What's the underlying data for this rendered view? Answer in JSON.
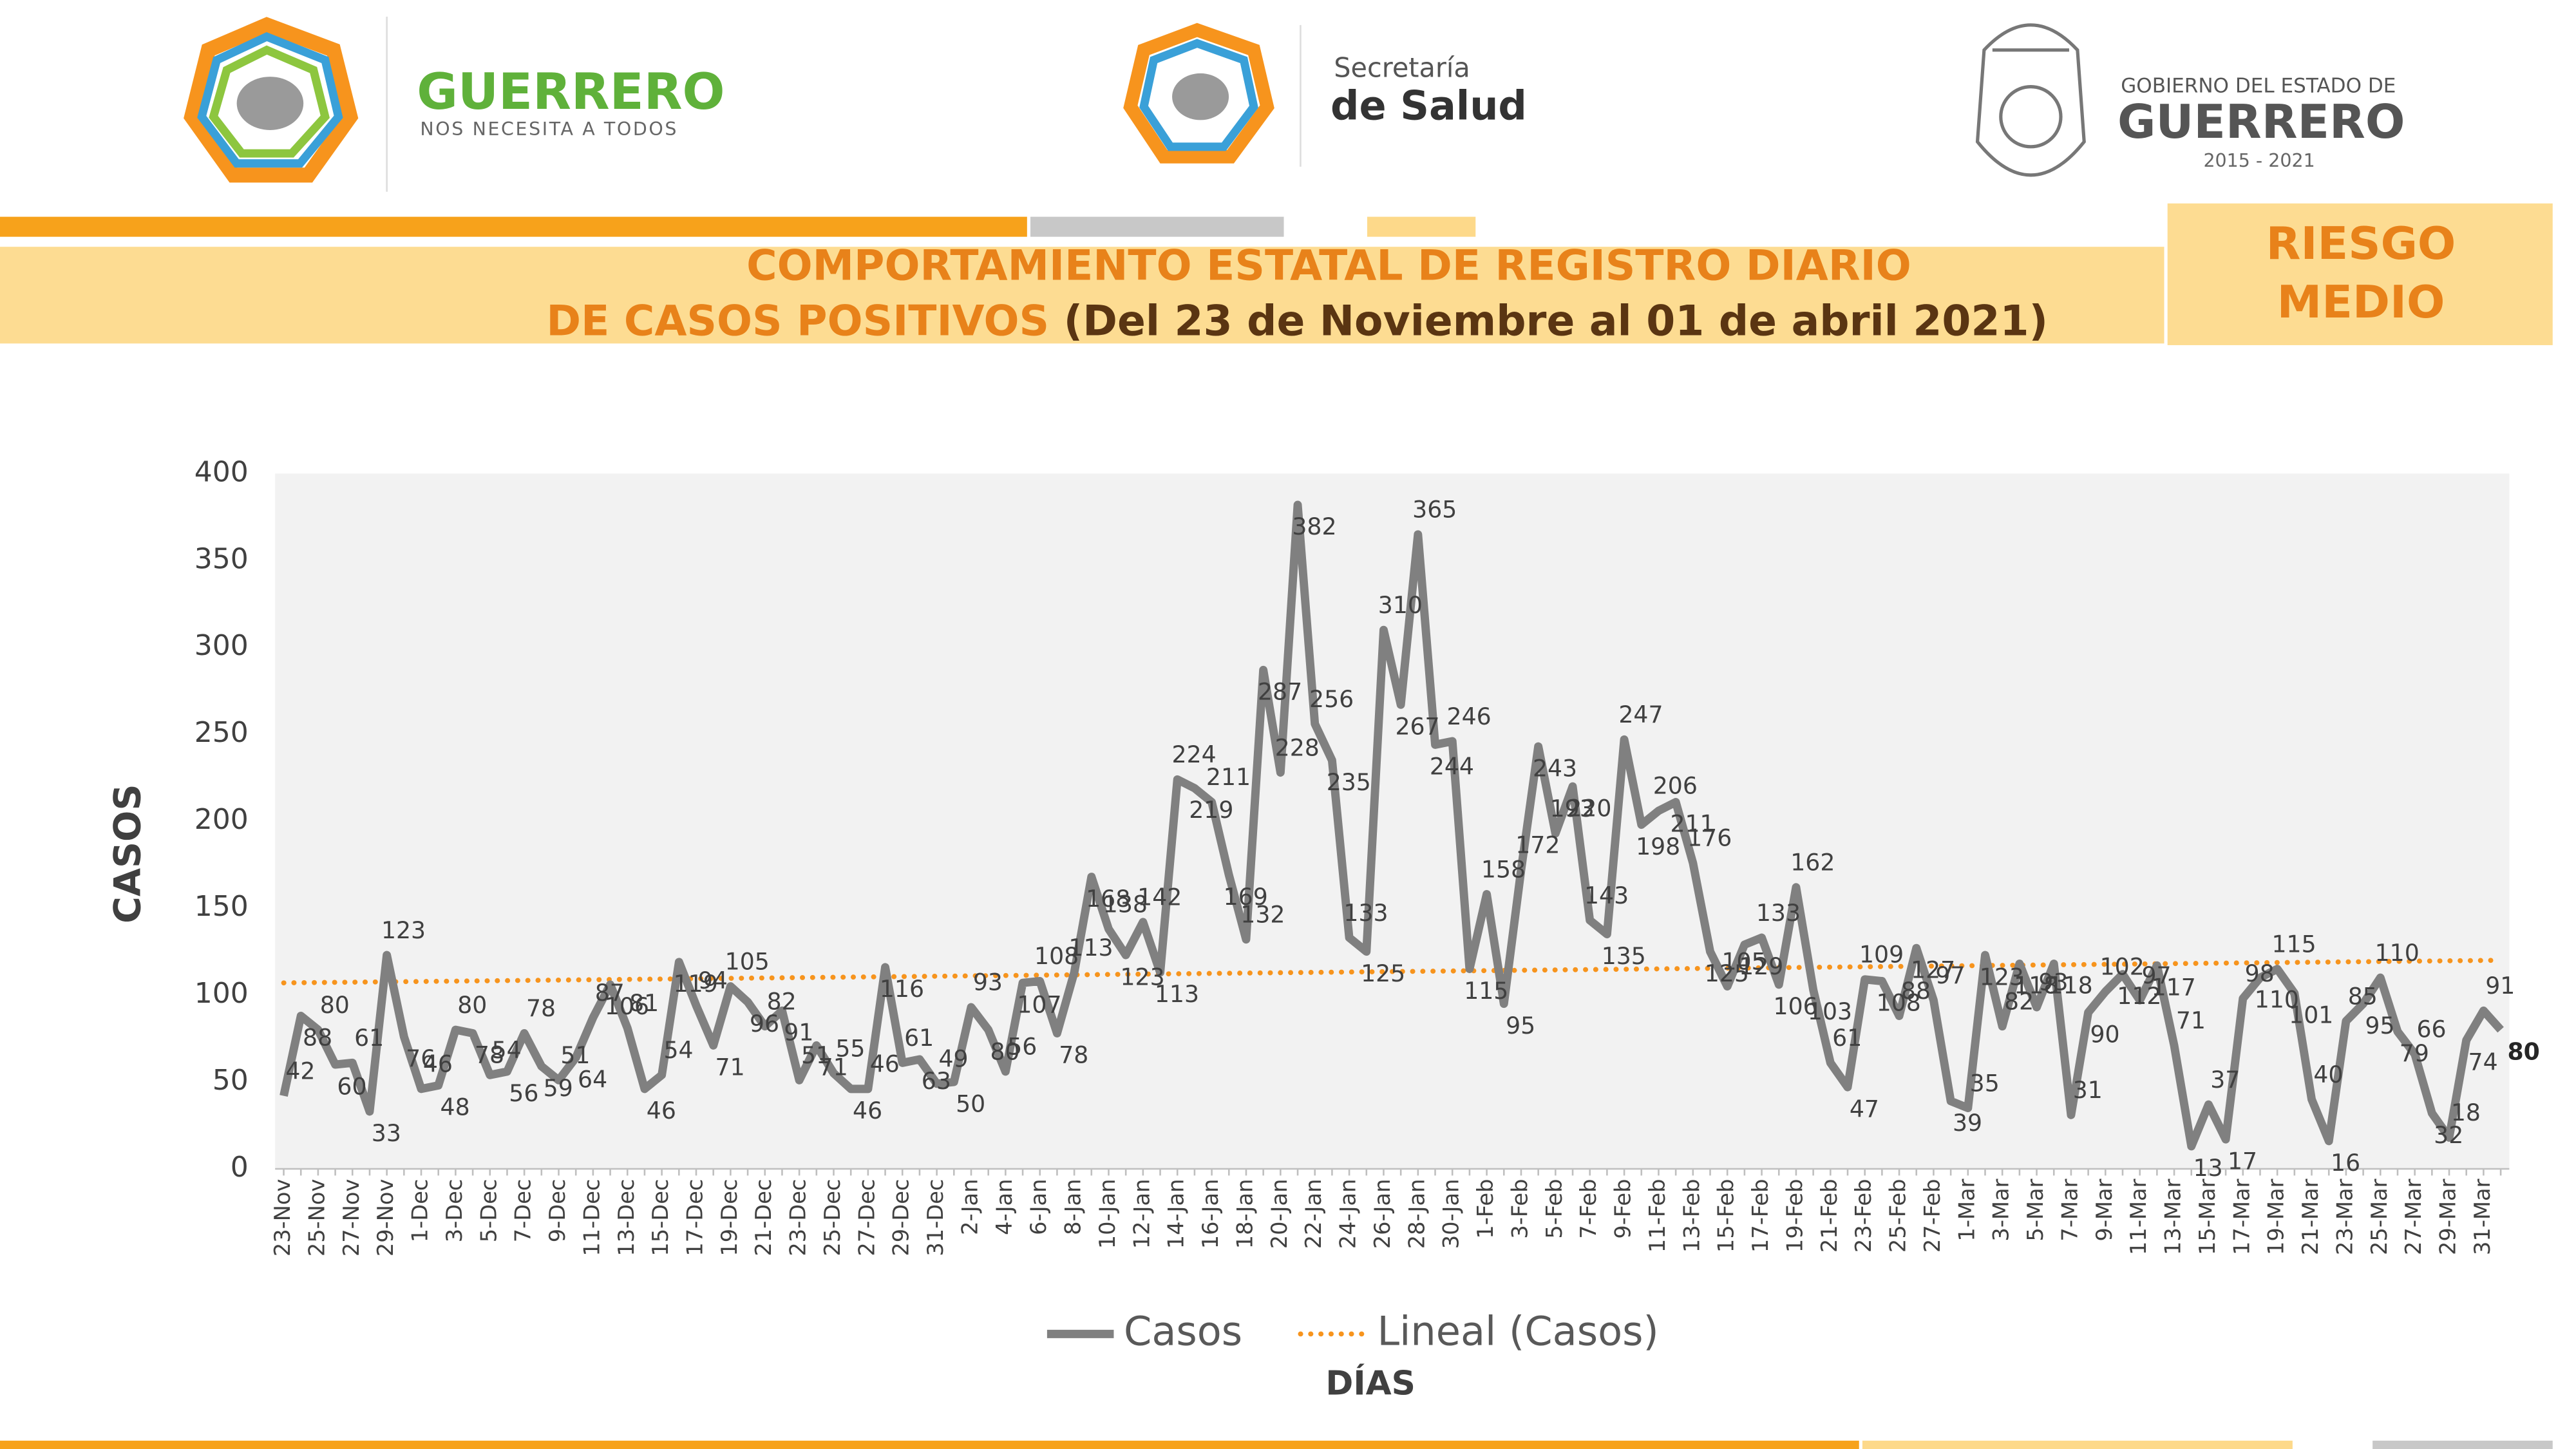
{
  "header": {
    "logo_left_title": "GUERRERO",
    "logo_left_subtitle": "NOS NECESITA A TODOS",
    "logo_center_line1": "Secretaría",
    "logo_center_line2": "de Salud",
    "logo_right_line1": "GOBIERNO DEL ESTADO DE",
    "logo_right_line2": "GUERRERO",
    "logo_right_line3": "2015 - 2021",
    "title_line1": "COMPORTAMIENTO ESTATAL DE REGISTRO DIARIO",
    "title_line2_a": "DE CASOS POSITIVOS",
    "title_line2_b": "(Del 23 de Noviembre al 01 de abril 2021)",
    "risk_line1": "RIESGO",
    "risk_line2": "MEDIO"
  },
  "chart_data": {
    "type": "line",
    "ylabel": "CASOS",
    "xlabel": "DÍAS",
    "ylim": [
      0,
      400
    ],
    "yticks": [
      0,
      50,
      100,
      150,
      200,
      250,
      300,
      350,
      400
    ],
    "grid": false,
    "legend": "bottom",
    "categories": [
      "23-Nov",
      null,
      "25-Nov",
      null,
      "27-Nov",
      null,
      "29-Nov",
      null,
      "1-Dec",
      null,
      "3-Dec",
      null,
      "5-Dec",
      null,
      "7-Dec",
      null,
      "9-Dec",
      null,
      "11-Dec",
      null,
      "13-Dec",
      null,
      "15-Dec",
      null,
      "17-Dec",
      null,
      "19-Dec",
      null,
      "21-Dec",
      null,
      "23-Dec",
      null,
      "25-Dec",
      null,
      "27-Dec",
      null,
      "29-Dec",
      null,
      "31-Dec",
      null,
      "2-Jan",
      null,
      "4-Jan",
      null,
      "6-Jan",
      null,
      "8-Jan",
      null,
      "10-Jan",
      null,
      "12-Jan",
      null,
      "14-Jan",
      null,
      "16-Jan",
      null,
      "18-Jan",
      null,
      "20-Jan",
      null,
      "22-Jan",
      null,
      "24-Jan",
      null,
      "26-Jan",
      null,
      "28-Jan",
      null,
      "30-Jan",
      null,
      "1-Feb",
      null,
      "3-Feb",
      null,
      "5-Feb",
      null,
      "7-Feb",
      null,
      "9-Feb",
      null,
      "11-Feb",
      null,
      "13-Feb",
      null,
      "15-Feb",
      null,
      "17-Feb",
      null,
      "19-Feb",
      null,
      "21-Feb",
      null,
      "23-Feb",
      null,
      "25-Feb",
      null,
      "27-Feb",
      null,
      "1-Mar",
      null,
      "3-Mar",
      null,
      "5-Mar",
      null,
      "7-Mar",
      null,
      "9-Mar",
      null,
      "11-Mar",
      null,
      "13-Mar",
      null,
      "15-Mar",
      null,
      "17-Mar",
      null,
      "19-Mar",
      null,
      "21-Mar",
      null,
      "23-Mar",
      null,
      "25-Mar",
      null,
      "27-Mar",
      null,
      "29-Mar",
      null,
      "31-Mar",
      null
    ],
    "series": [
      {
        "name": "Casos",
        "color": "#808080",
        "values": [
          42,
          88,
          80,
          60,
          61,
          33,
          123,
          76,
          46,
          48,
          80,
          78,
          54,
          56,
          78,
          59,
          51,
          64,
          87,
          106,
          81,
          46,
          54,
          119,
          94,
          71,
          105,
          96,
          82,
          91,
          51,
          71,
          55,
          46,
          46,
          116,
          61,
          63,
          49,
          50,
          93,
          80,
          56,
          107,
          108,
          78,
          113,
          168,
          138,
          123,
          142,
          113,
          224,
          219,
          211,
          169,
          132,
          287,
          228,
          382,
          256,
          235,
          133,
          125,
          310,
          267,
          365,
          244,
          246,
          115,
          158,
          95,
          172,
          243,
          193,
          220,
          143,
          135,
          247,
          198,
          206,
          211,
          176,
          125,
          105,
          129,
          133,
          106,
          162,
          103,
          61,
          47,
          109,
          108,
          88,
          127,
          97,
          39,
          35,
          123,
          82,
          118,
          93,
          118,
          31,
          90,
          102,
          112,
          97,
          117,
          71,
          13,
          37,
          17,
          98,
          110,
          115,
          101,
          40,
          16,
          85,
          95,
          110,
          79,
          66,
          32,
          18,
          74,
          91,
          80
        ]
      }
    ],
    "trend": {
      "name": "Lineal (Casos)",
      "color": "#f7941d",
      "start": 107,
      "end": 120
    }
  }
}
